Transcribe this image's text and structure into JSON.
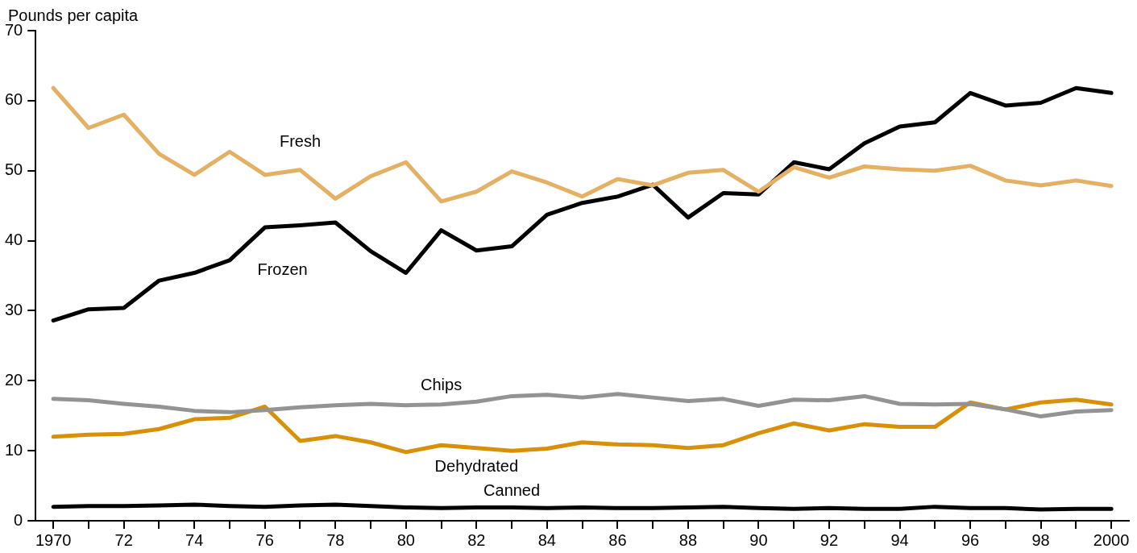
{
  "chart_data": {
    "type": "line",
    "ylabel": "Pounds per capita",
    "x": [
      1970,
      1971,
      1972,
      1973,
      1974,
      1975,
      1976,
      1977,
      1978,
      1979,
      1980,
      1981,
      1982,
      1983,
      1984,
      1985,
      1986,
      1987,
      1988,
      1989,
      1990,
      1991,
      1992,
      1993,
      1994,
      1995,
      1996,
      1997,
      1998,
      1999,
      2000
    ],
    "xlim": [
      1969.5,
      2000.5
    ],
    "xticks": [
      {
        "value": 1970,
        "label": "1970"
      },
      {
        "value": 1971,
        "label": null
      },
      {
        "value": 1972,
        "label": "72"
      },
      {
        "value": 1973,
        "label": null
      },
      {
        "value": 1974,
        "label": "74"
      },
      {
        "value": 1975,
        "label": null
      },
      {
        "value": 1976,
        "label": "76"
      },
      {
        "value": 1977,
        "label": null
      },
      {
        "value": 1978,
        "label": "78"
      },
      {
        "value": 1979,
        "label": null
      },
      {
        "value": 1980,
        "label": "80"
      },
      {
        "value": 1981,
        "label": null
      },
      {
        "value": 1982,
        "label": "82"
      },
      {
        "value": 1983,
        "label": null
      },
      {
        "value": 1984,
        "label": "84"
      },
      {
        "value": 1985,
        "label": null
      },
      {
        "value": 1986,
        "label": "86"
      },
      {
        "value": 1987,
        "label": null
      },
      {
        "value": 1988,
        "label": "88"
      },
      {
        "value": 1989,
        "label": null
      },
      {
        "value": 1990,
        "label": "90"
      },
      {
        "value": 1991,
        "label": null
      },
      {
        "value": 1992,
        "label": "92"
      },
      {
        "value": 1993,
        "label": null
      },
      {
        "value": 1994,
        "label": "94"
      },
      {
        "value": 1995,
        "label": null
      },
      {
        "value": 1996,
        "label": "96"
      },
      {
        "value": 1997,
        "label": null
      },
      {
        "value": 1998,
        "label": "98"
      },
      {
        "value": 1999,
        "label": null
      },
      {
        "value": 2000,
        "label": "2000"
      }
    ],
    "ylim": [
      0,
      70
    ],
    "yticks": [
      0,
      10,
      20,
      30,
      40,
      50,
      60,
      70
    ],
    "grid": false,
    "legend": false,
    "marker": "none",
    "line_style": "solid",
    "series": [
      {
        "name": "Fresh",
        "color": "#e3b064",
        "values": [
          61.8,
          56.1,
          58,
          52.4,
          49.4,
          52.7,
          49.4,
          50.1,
          46,
          49.2,
          51.2,
          45.6,
          47,
          49.9,
          48.3,
          46.3,
          48.8,
          47.9,
          49.7,
          50.1,
          47,
          50.5,
          49,
          50.6,
          50.2,
          50,
          50.7,
          48.6,
          47.9,
          48.6,
          47.8
        ]
      },
      {
        "name": "Frozen",
        "color": "#000000",
        "values": [
          28.6,
          30.2,
          30.4,
          34.3,
          35.4,
          37.2,
          41.9,
          42.2,
          42.6,
          38.5,
          35.4,
          41.5,
          38.6,
          39.2,
          43.7,
          45.4,
          46.3,
          48,
          43.3,
          46.8,
          46.6,
          51.2,
          50.2,
          53.9,
          56.3,
          56.9,
          61.1,
          59.3,
          59.7,
          61.8,
          61.1
        ]
      },
      {
        "name": "Chips",
        "color": "#939393",
        "values": [
          17.4,
          17.2,
          16.7,
          16.3,
          15.7,
          15.5,
          15.8,
          16.2,
          16.5,
          16.7,
          16.5,
          16.6,
          17,
          17.8,
          18,
          17.6,
          18.1,
          17.6,
          17.1,
          17.4,
          16.4,
          17.3,
          17.2,
          17.8,
          16.7,
          16.6,
          16.7,
          15.9,
          14.9,
          15.6,
          15.8
        ]
      },
      {
        "name": "Dehydrated",
        "color": "#d89008",
        "values": [
          12,
          12.3,
          12.4,
          13.1,
          14.5,
          14.7,
          16.3,
          11.4,
          12.1,
          11.2,
          9.8,
          10.8,
          10.4,
          10,
          10.3,
          11.2,
          10.9,
          10.8,
          10.4,
          10.8,
          12.5,
          13.9,
          12.9,
          13.8,
          13.4,
          13.4,
          16.9,
          15.9,
          16.9,
          17.3,
          16.6
        ]
      },
      {
        "name": "Canned",
        "color": "#000000",
        "values": [
          2,
          2.1,
          2.1,
          2.2,
          2.3,
          2.1,
          2,
          2.2,
          2.3,
          2.1,
          1.9,
          1.8,
          1.9,
          1.9,
          1.8,
          1.9,
          1.8,
          1.8,
          1.9,
          2,
          1.8,
          1.7,
          1.8,
          1.7,
          1.7,
          2,
          1.8,
          1.8,
          1.6,
          1.7,
          1.7
        ]
      }
    ]
  }
}
